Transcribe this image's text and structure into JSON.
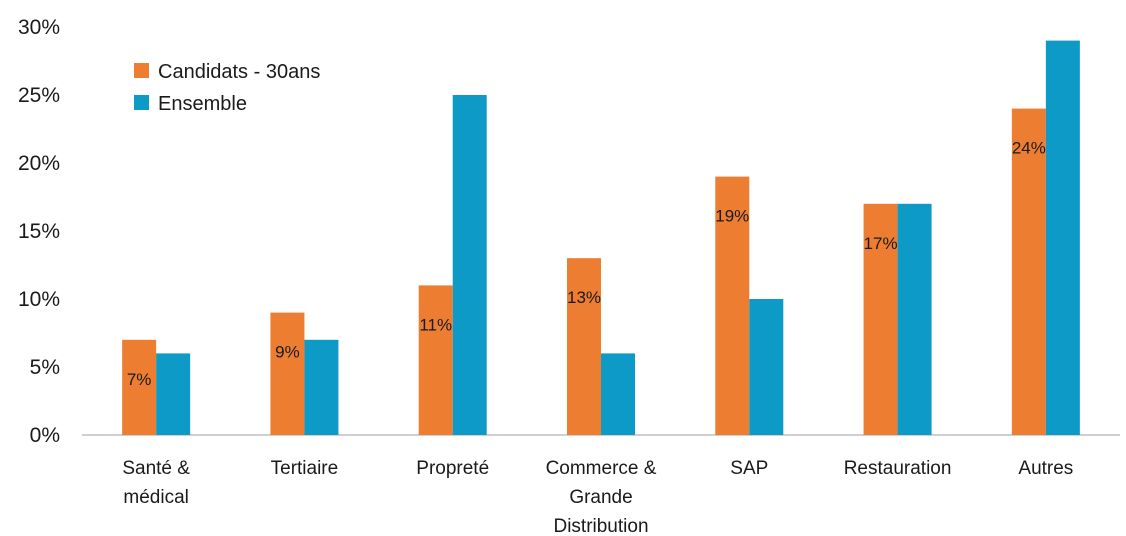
{
  "chart_data": {
    "type": "bar",
    "categories": [
      [
        "Santé &",
        "médical"
      ],
      [
        "Tertiaire"
      ],
      [
        "Propreté"
      ],
      [
        "Commerce &",
        "Grande",
        "Distribution"
      ],
      [
        "SAP"
      ],
      [
        "Restauration"
      ],
      [
        "Autres"
      ]
    ],
    "series": [
      {
        "name": "Candidats - 30ans",
        "color": "#ED7D31",
        "values": [
          7,
          9,
          11,
          13,
          19,
          17,
          24
        ],
        "data_labels": [
          "7%",
          "9%",
          "11%",
          "13%",
          "19%",
          "17%",
          "24%"
        ]
      },
      {
        "name": "Ensemble",
        "color": "#0E9AC6",
        "values": [
          6,
          7,
          25,
          6,
          10,
          17,
          29
        ]
      }
    ],
    "y_ticks": [
      "0%",
      "5%",
      "10%",
      "15%",
      "20%",
      "25%",
      "30%"
    ],
    "ylim": [
      0,
      30
    ],
    "grid": false,
    "legend": "top-left"
  }
}
